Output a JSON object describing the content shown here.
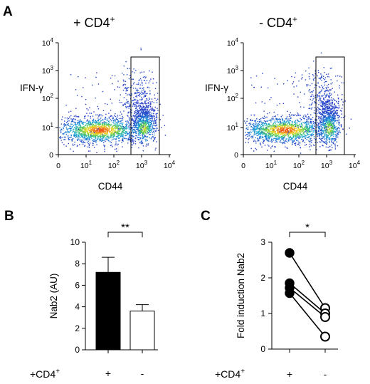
{
  "panels": {
    "A": {
      "letter": "A",
      "plots": [
        {
          "title_main": "+ CD4",
          "title_sup": "+",
          "ylabel": "IFN-γ",
          "xlabel": "CD44",
          "mirrored_peak": false
        },
        {
          "title_main": "- CD4",
          "title_sup": "+",
          "ylabel": "IFN-γ",
          "xlabel": "CD44",
          "mirrored_peak": true
        }
      ],
      "ticks": [
        {
          "base": "0",
          "exp": ""
        },
        {
          "base": "10",
          "exp": "1"
        },
        {
          "base": "10",
          "exp": "2"
        },
        {
          "base": "10",
          "exp": "3"
        },
        {
          "base": "10",
          "exp": "4"
        }
      ]
    },
    "B": {
      "letter": "B"
    },
    "C": {
      "letter": "C"
    }
  },
  "chart_data": [
    {
      "type": "scatter",
      "panel": "A-left",
      "title": "+ CD4+",
      "xlabel": "CD44",
      "ylabel": "IFN-γ",
      "x_scale": "biexponential",
      "y_scale": "biexponential",
      "xlim_decades": [
        0,
        4
      ],
      "ylim_decades": [
        0,
        4
      ],
      "gate": {
        "x": [
          2.5,
          3.5
        ],
        "y": [
          0,
          3.4
        ]
      }
    },
    {
      "type": "scatter",
      "panel": "A-right",
      "title": "- CD4+",
      "xlabel": "CD44",
      "ylabel": "IFN-γ",
      "x_scale": "biexponential",
      "y_scale": "biexponential",
      "xlim_decades": [
        0,
        4
      ],
      "ylim_decades": [
        0,
        4
      ],
      "gate": {
        "x": [
          2.5,
          3.5
        ],
        "y": [
          0,
          3.4
        ]
      }
    },
    {
      "type": "bar",
      "panel": "B",
      "categories": [
        "+",
        "-"
      ],
      "category_axis_label": "+CD4+",
      "values": [
        7.2,
        3.6
      ],
      "errors": [
        1.4,
        0.6
      ],
      "bar_fills": [
        "#000000",
        "#ffffff"
      ],
      "ylabel": "Nab2 (AU)",
      "ylim": [
        0,
        10
      ],
      "yticks": [
        "0",
        "2",
        "4",
        "6",
        "8",
        "10"
      ],
      "significance": "**"
    },
    {
      "type": "line",
      "panel": "C",
      "categories": [
        "+",
        "-"
      ],
      "category_axis_label": "+CD4+",
      "pairs": [
        [
          2.7,
          1.15
        ],
        [
          1.85,
          1.0
        ],
        [
          1.72,
          0.9
        ],
        [
          1.57,
          0.35
        ]
      ],
      "marker_plus": "filled-circle",
      "marker_minus": "open-circle",
      "ylabel": "Fold induction Nab2",
      "ylim": [
        0,
        3
      ],
      "yticks": [
        "0",
        "1",
        "2",
        "3"
      ],
      "significance": "*"
    }
  ]
}
